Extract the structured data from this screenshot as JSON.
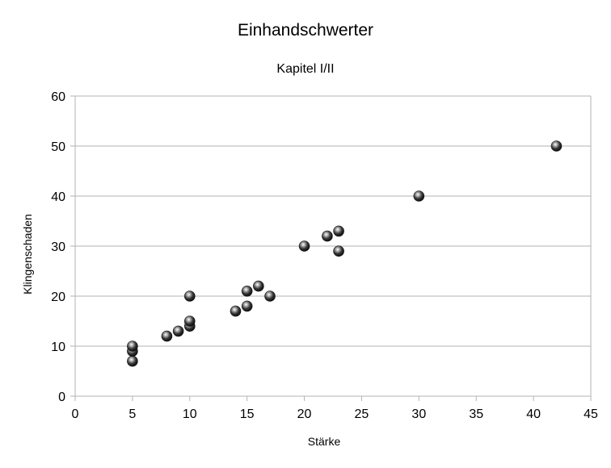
{
  "chart_data": {
    "type": "scatter",
    "title": "Einhandschwerter",
    "subtitle": "Kapitel I/II",
    "xlabel": "Stärke",
    "ylabel": "Klingenschaden",
    "xlim": [
      0,
      45
    ],
    "ylim": [
      0,
      60
    ],
    "xticks": [
      0,
      5,
      10,
      15,
      20,
      25,
      30,
      35,
      40,
      45
    ],
    "yticks": [
      0,
      10,
      20,
      30,
      40,
      50,
      60
    ],
    "grid": "horizontal",
    "legend": "none",
    "marker_color": "#3a3a3a",
    "points": [
      {
        "x": 5,
        "y": 7
      },
      {
        "x": 5,
        "y": 9
      },
      {
        "x": 5,
        "y": 10
      },
      {
        "x": 8,
        "y": 12
      },
      {
        "x": 9,
        "y": 13
      },
      {
        "x": 10,
        "y": 14
      },
      {
        "x": 10,
        "y": 15
      },
      {
        "x": 10,
        "y": 20
      },
      {
        "x": 14,
        "y": 17
      },
      {
        "x": 15,
        "y": 18
      },
      {
        "x": 15,
        "y": 21
      },
      {
        "x": 16,
        "y": 22
      },
      {
        "x": 17,
        "y": 20
      },
      {
        "x": 20,
        "y": 30
      },
      {
        "x": 22,
        "y": 32
      },
      {
        "x": 23,
        "y": 33
      },
      {
        "x": 23,
        "y": 29
      },
      {
        "x": 30,
        "y": 40
      },
      {
        "x": 42,
        "y": 50
      }
    ]
  }
}
